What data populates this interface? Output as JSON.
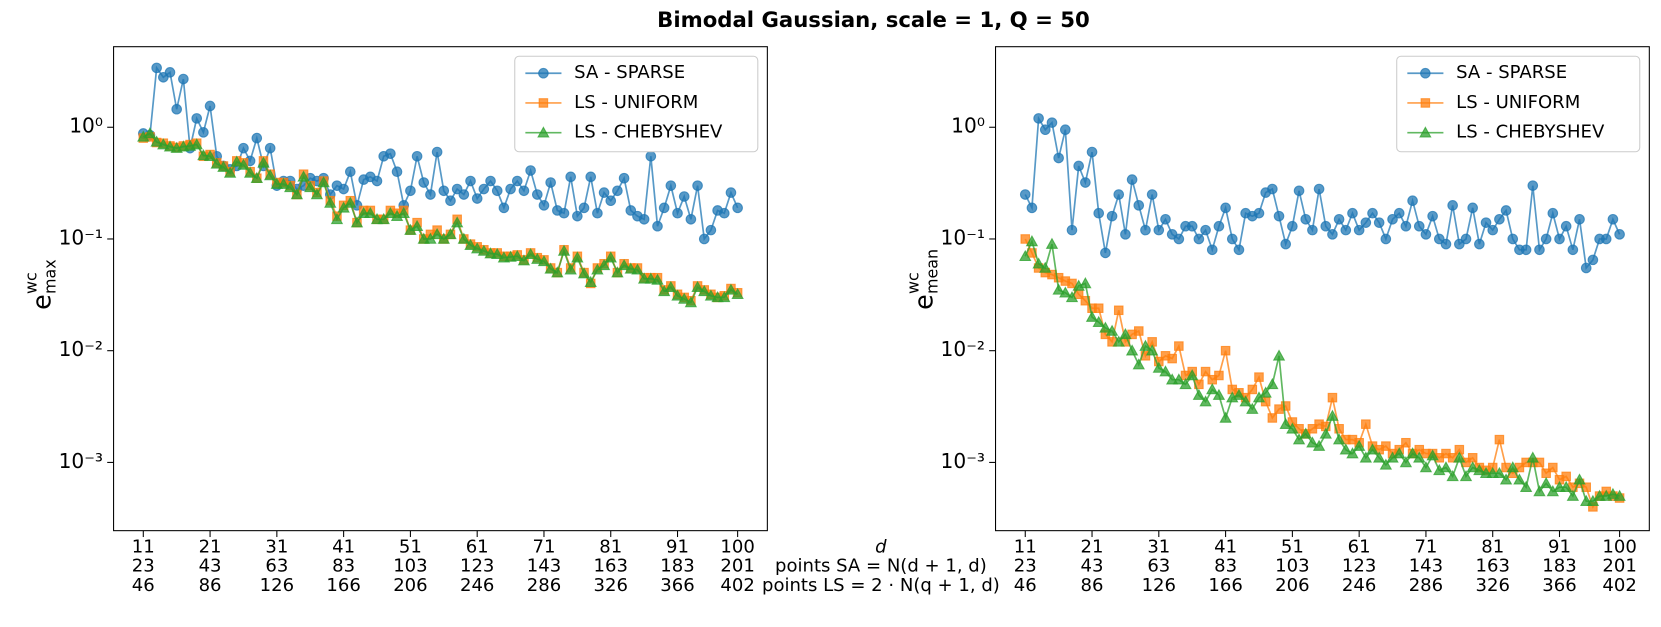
{
  "title": "Bimodal Gaussian, scale = 1, Q = 50",
  "xlabel": [
    "d",
    "points SA = N(d + 1, d)",
    "points LS = 2 · N(q + 1, d)"
  ],
  "chart_data": [
    {
      "type": "line",
      "log_y": true,
      "ylabel": {
        "base": "e",
        "sup": "wc",
        "sub": "max"
      },
      "xlim": [
        6.55,
        104.45
      ],
      "ylim": [
        0.000245,
        5.26
      ],
      "xticks": [
        11,
        21,
        31,
        41,
        51,
        61,
        71,
        81,
        91,
        100
      ],
      "xticks_sa": [
        23,
        43,
        63,
        83,
        103,
        123,
        143,
        163,
        183,
        201
      ],
      "xticks_ls": [
        46,
        86,
        126,
        166,
        206,
        246,
        286,
        326,
        366,
        402
      ],
      "yticks": [
        {
          "value": 1,
          "label": "10⁰"
        },
        {
          "value": 0.1,
          "label": "10⁻¹"
        },
        {
          "value": 0.01,
          "label": "10⁻²"
        },
        {
          "value": 0.001,
          "label": "10⁻³"
        }
      ],
      "legend": "upper right",
      "x": [
        11,
        12,
        13,
        14,
        15,
        16,
        17,
        18,
        19,
        20,
        21,
        22,
        23,
        24,
        25,
        26,
        27,
        28,
        29,
        30,
        31,
        32,
        33,
        34,
        35,
        36,
        37,
        38,
        39,
        40,
        41,
        42,
        43,
        44,
        45,
        46,
        47,
        48,
        49,
        50,
        51,
        52,
        53,
        54,
        55,
        56,
        57,
        58,
        59,
        60,
        61,
        62,
        63,
        64,
        65,
        66,
        67,
        68,
        69,
        70,
        71,
        72,
        73,
        74,
        75,
        76,
        77,
        78,
        79,
        80,
        81,
        82,
        83,
        84,
        85,
        86,
        87,
        88,
        89,
        90,
        91,
        92,
        93,
        94,
        95,
        96,
        97,
        98,
        99,
        100
      ],
      "series": [
        {
          "name": "SA - SPARSE",
          "color": "#1f77b4",
          "marker": "circle",
          "values": [
            0.88,
            0.85,
            3.4,
            2.8,
            3.1,
            1.45,
            2.7,
            0.65,
            1.2,
            0.9,
            1.55,
            0.55,
            0.45,
            0.42,
            0.45,
            0.65,
            0.5,
            0.8,
            0.45,
            0.65,
            0.3,
            0.33,
            0.33,
            0.28,
            0.3,
            0.35,
            0.33,
            0.35,
            0.25,
            0.3,
            0.28,
            0.4,
            0.2,
            0.34,
            0.36,
            0.33,
            0.55,
            0.58,
            0.4,
            0.2,
            0.27,
            0.55,
            0.32,
            0.25,
            0.6,
            0.27,
            0.22,
            0.28,
            0.25,
            0.33,
            0.23,
            0.28,
            0.33,
            0.27,
            0.19,
            0.28,
            0.33,
            0.27,
            0.41,
            0.25,
            0.2,
            0.32,
            0.18,
            0.17,
            0.36,
            0.16,
            0.19,
            0.36,
            0.17,
            0.26,
            0.22,
            0.27,
            0.35,
            0.18,
            0.16,
            0.15,
            0.55,
            0.13,
            0.19,
            0.3,
            0.17,
            0.24,
            0.15,
            0.3,
            0.1,
            0.12,
            0.18,
            0.17,
            0.26,
            0.19
          ]
        },
        {
          "name": "LS - UNIFORM",
          "color": "#ff7f0e",
          "marker": "square",
          "values": [
            0.8,
            0.82,
            0.73,
            0.72,
            0.68,
            0.66,
            0.68,
            0.7,
            0.72,
            0.55,
            0.57,
            0.48,
            0.45,
            0.4,
            0.5,
            0.48,
            0.4,
            0.35,
            0.5,
            0.38,
            0.32,
            0.32,
            0.3,
            0.25,
            0.38,
            0.3,
            0.26,
            0.33,
            0.22,
            0.16,
            0.2,
            0.22,
            0.14,
            0.18,
            0.18,
            0.15,
            0.15,
            0.18,
            0.17,
            0.18,
            0.12,
            0.14,
            0.1,
            0.11,
            0.12,
            0.1,
            0.11,
            0.15,
            0.1,
            0.09,
            0.085,
            0.08,
            0.075,
            0.075,
            0.07,
            0.07,
            0.072,
            0.065,
            0.075,
            0.068,
            0.065,
            0.055,
            0.05,
            0.08,
            0.055,
            0.07,
            0.05,
            0.04,
            0.055,
            0.06,
            0.07,
            0.05,
            0.06,
            0.055,
            0.055,
            0.045,
            0.045,
            0.045,
            0.035,
            0.038,
            0.032,
            0.03,
            0.028,
            0.038,
            0.035,
            0.032,
            0.03,
            0.031,
            0.036,
            0.033
          ]
        },
        {
          "name": "LS - CHEBYSHEV",
          "color": "#2ca02c",
          "marker": "triangle",
          "values": [
            0.82,
            0.88,
            0.74,
            0.7,
            0.67,
            0.65,
            0.67,
            0.68,
            0.7,
            0.56,
            0.55,
            0.47,
            0.44,
            0.39,
            0.49,
            0.46,
            0.39,
            0.35,
            0.48,
            0.37,
            0.31,
            0.31,
            0.29,
            0.25,
            0.36,
            0.29,
            0.25,
            0.32,
            0.21,
            0.15,
            0.19,
            0.21,
            0.14,
            0.17,
            0.17,
            0.15,
            0.15,
            0.17,
            0.16,
            0.17,
            0.12,
            0.13,
            0.1,
            0.1,
            0.11,
            0.1,
            0.11,
            0.14,
            0.1,
            0.088,
            0.082,
            0.078,
            0.074,
            0.073,
            0.068,
            0.069,
            0.07,
            0.064,
            0.073,
            0.066,
            0.063,
            0.054,
            0.05,
            0.078,
            0.053,
            0.068,
            0.049,
            0.041,
            0.053,
            0.058,
            0.068,
            0.05,
            0.058,
            0.054,
            0.053,
            0.044,
            0.044,
            0.043,
            0.034,
            0.037,
            0.031,
            0.029,
            0.027,
            0.037,
            0.034,
            0.031,
            0.03,
            0.03,
            0.035,
            0.032
          ]
        }
      ]
    },
    {
      "type": "line",
      "log_y": true,
      "ylabel": {
        "base": "e",
        "sup": "wc",
        "sub": "mean"
      },
      "xlim": [
        6.55,
        104.45
      ],
      "ylim": [
        0.000245,
        5.26
      ],
      "xticks": [
        11,
        21,
        31,
        41,
        51,
        61,
        71,
        81,
        91,
        100
      ],
      "xticks_sa": [
        23,
        43,
        63,
        83,
        103,
        123,
        143,
        163,
        183,
        201
      ],
      "xticks_ls": [
        46,
        86,
        126,
        166,
        206,
        246,
        286,
        326,
        366,
        402
      ],
      "yticks": [
        {
          "value": 1,
          "label": "10⁰"
        },
        {
          "value": 0.1,
          "label": "10⁻¹"
        },
        {
          "value": 0.01,
          "label": "10⁻²"
        },
        {
          "value": 0.001,
          "label": "10⁻³"
        }
      ],
      "legend": "upper right",
      "x": [
        11,
        12,
        13,
        14,
        15,
        16,
        17,
        18,
        19,
        20,
        21,
        22,
        23,
        24,
        25,
        26,
        27,
        28,
        29,
        30,
        31,
        32,
        33,
        34,
        35,
        36,
        37,
        38,
        39,
        40,
        41,
        42,
        43,
        44,
        45,
        46,
        47,
        48,
        49,
        50,
        51,
        52,
        53,
        54,
        55,
        56,
        57,
        58,
        59,
        60,
        61,
        62,
        63,
        64,
        65,
        66,
        67,
        68,
        69,
        70,
        71,
        72,
        73,
        74,
        75,
        76,
        77,
        78,
        79,
        80,
        81,
        82,
        83,
        84,
        85,
        86,
        87,
        88,
        89,
        90,
        91,
        92,
        93,
        94,
        95,
        96,
        97,
        98,
        99,
        100
      ],
      "series": [
        {
          "name": "SA - SPARSE",
          "color": "#1f77b4",
          "marker": "circle",
          "values": [
            0.25,
            0.19,
            1.2,
            0.95,
            1.1,
            0.53,
            0.95,
            0.12,
            0.45,
            0.32,
            0.6,
            0.17,
            0.075,
            0.16,
            0.25,
            0.11,
            0.34,
            0.2,
            0.12,
            0.25,
            0.12,
            0.15,
            0.11,
            0.1,
            0.13,
            0.13,
            0.1,
            0.12,
            0.08,
            0.13,
            0.19,
            0.1,
            0.08,
            0.17,
            0.16,
            0.17,
            0.26,
            0.28,
            0.16,
            0.09,
            0.13,
            0.27,
            0.15,
            0.12,
            0.28,
            0.13,
            0.11,
            0.15,
            0.12,
            0.17,
            0.12,
            0.14,
            0.17,
            0.14,
            0.1,
            0.15,
            0.17,
            0.13,
            0.22,
            0.13,
            0.11,
            0.16,
            0.1,
            0.09,
            0.2,
            0.09,
            0.1,
            0.19,
            0.09,
            0.14,
            0.12,
            0.15,
            0.18,
            0.1,
            0.08,
            0.08,
            0.3,
            0.08,
            0.1,
            0.17,
            0.1,
            0.13,
            0.08,
            0.15,
            0.055,
            0.065,
            0.1,
            0.1,
            0.15,
            0.11
          ]
        },
        {
          "name": "LS - UNIFORM",
          "color": "#ff7f0e",
          "marker": "square",
          "values": [
            0.1,
            0.075,
            0.055,
            0.05,
            0.048,
            0.045,
            0.042,
            0.04,
            0.032,
            0.028,
            0.024,
            0.024,
            0.014,
            0.012,
            0.023,
            0.012,
            0.014,
            0.015,
            0.009,
            0.012,
            0.008,
            0.009,
            0.0085,
            0.011,
            0.006,
            0.0065,
            0.005,
            0.0065,
            0.0055,
            0.006,
            0.01,
            0.0045,
            0.0042,
            0.0038,
            0.0045,
            0.0058,
            0.0035,
            0.0025,
            0.003,
            0.0032,
            0.0023,
            0.002,
            0.0018,
            0.002,
            0.0022,
            0.0021,
            0.0038,
            0.002,
            0.0016,
            0.0016,
            0.0015,
            0.0022,
            0.0014,
            0.0013,
            0.0014,
            0.0012,
            0.0013,
            0.0015,
            0.0012,
            0.0013,
            0.0012,
            0.0012,
            0.0011,
            0.0012,
            0.0011,
            0.0013,
            0.001,
            0.0011,
            0.0009,
            0.00085,
            0.0009,
            0.0016,
            0.0009,
            0.0008,
            0.0009,
            0.001,
            0.001,
            0.001,
            0.0008,
            0.0009,
            0.0007,
            0.00075,
            0.0006,
            0.00065,
            0.0006,
            0.0004,
            0.0005,
            0.00055,
            0.0005,
            0.00048
          ]
        },
        {
          "name": "LS - CHEBYSHEV",
          "color": "#2ca02c",
          "marker": "triangle",
          "values": [
            0.07,
            0.095,
            0.06,
            0.055,
            0.09,
            0.035,
            0.033,
            0.03,
            0.038,
            0.04,
            0.02,
            0.018,
            0.016,
            0.015,
            0.012,
            0.014,
            0.01,
            0.0075,
            0.011,
            0.01,
            0.007,
            0.0065,
            0.0055,
            0.0055,
            0.005,
            0.006,
            0.004,
            0.0035,
            0.0045,
            0.004,
            0.0025,
            0.0038,
            0.004,
            0.0035,
            0.003,
            0.0038,
            0.0042,
            0.005,
            0.009,
            0.0022,
            0.002,
            0.0016,
            0.0018,
            0.0015,
            0.0014,
            0.0018,
            0.0026,
            0.0016,
            0.0013,
            0.0012,
            0.0014,
            0.0011,
            0.0013,
            0.0011,
            0.00095,
            0.0011,
            0.0012,
            0.001,
            0.0012,
            0.0011,
            0.0009,
            0.00115,
            0.00085,
            0.0009,
            0.00075,
            0.0011,
            0.00075,
            0.0009,
            0.00085,
            0.0008,
            0.0008,
            0.0008,
            0.0007,
            0.0009,
            0.0007,
            0.0006,
            0.0011,
            0.00055,
            0.00065,
            0.00055,
            0.0006,
            0.0006,
            0.0005,
            0.0007,
            0.00045,
            0.00045,
            0.0005,
            0.0005,
            0.00052,
            0.0005
          ]
        }
      ]
    }
  ]
}
